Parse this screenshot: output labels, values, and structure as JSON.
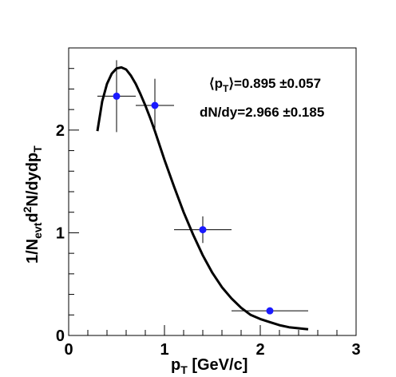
{
  "chart_data": {
    "type": "scatter",
    "xlabel": {
      "main": "p",
      "sub": "T",
      "rest": " [GeV/c]"
    },
    "ylabel": {
      "p1": "1/N",
      "sub1": "evt",
      "p2": "d",
      "sup": "2",
      "p3": "N/dydp",
      "sub2": "T"
    },
    "xlim": [
      0,
      3
    ],
    "ylim": [
      0,
      2.8
    ],
    "x_ticks": [
      0,
      1,
      2,
      3
    ],
    "x_tick_labels": [
      "0",
      "1",
      "2",
      "3"
    ],
    "y_ticks": [
      0,
      1,
      2
    ],
    "y_tick_labels": [
      "0",
      "1",
      "2"
    ],
    "grid": false,
    "point_color": "#1a1aff",
    "series": [
      {
        "points": [
          {
            "x": 0.5,
            "y": 2.33,
            "xerr": 0.2,
            "yerr": 0.35
          },
          {
            "x": 0.9,
            "y": 2.24,
            "xerr": 0.2,
            "yerr": 0.26
          },
          {
            "x": 1.4,
            "y": 1.03,
            "xerr": 0.3,
            "yerr": 0.13
          },
          {
            "x": 2.1,
            "y": 0.24,
            "xerr": 0.4,
            "yerr": 0.03
          }
        ]
      }
    ],
    "fit_curve": {
      "x": [
        0.3,
        0.35,
        0.4,
        0.45,
        0.5,
        0.55,
        0.6,
        0.65,
        0.7,
        0.75,
        0.8,
        0.85,
        0.9,
        0.95,
        1.0,
        1.1,
        1.2,
        1.3,
        1.4,
        1.5,
        1.6,
        1.7,
        1.8,
        1.9,
        2.0,
        2.1,
        2.2,
        2.3,
        2.4,
        2.5
      ],
      "y": [
        1.99,
        2.28,
        2.45,
        2.55,
        2.6,
        2.61,
        2.59,
        2.53,
        2.45,
        2.35,
        2.24,
        2.12,
        1.99,
        1.85,
        1.71,
        1.45,
        1.2,
        0.98,
        0.78,
        0.61,
        0.47,
        0.36,
        0.27,
        0.2,
        0.16,
        0.13,
        0.1,
        0.08,
        0.07,
        0.06
      ]
    },
    "annotations": [
      {
        "text": "⟨p",
        "sub": "T",
        "rest": "⟩=0.895 ±0.057"
      },
      {
        "text": "dN/dy=2.966 ±0.185",
        "sub": "",
        "rest": ""
      }
    ]
  }
}
